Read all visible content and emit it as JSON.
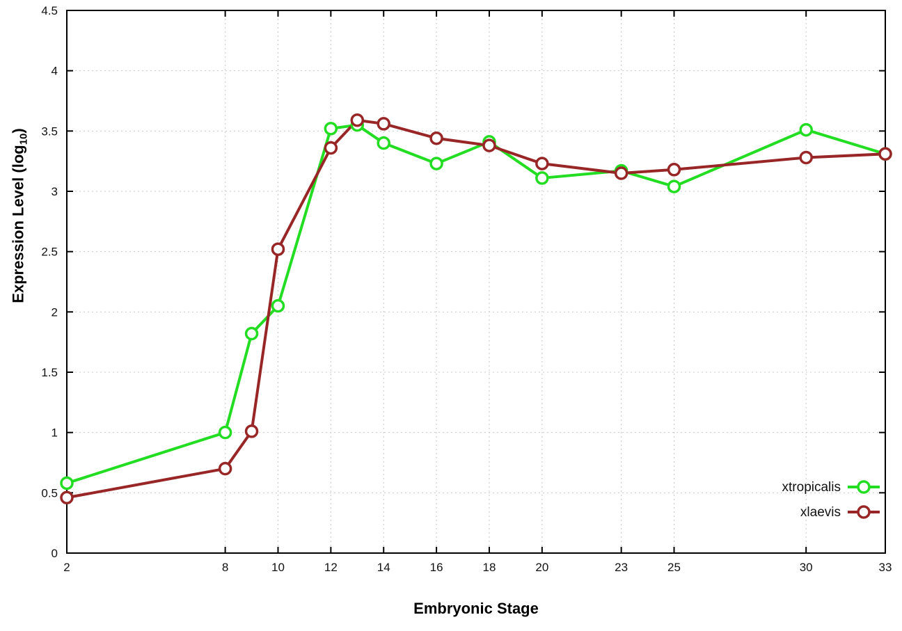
{
  "figure": {
    "background": "#ffffff",
    "border_color": "#000000",
    "grid_color": "#c8c8c8"
  },
  "chart_data": {
    "type": "line",
    "title": "",
    "xlabel": "Embryonic Stage",
    "ylabel": "Expression Level (log10)",
    "ylabel_parts": {
      "prefix": "Expression Level (log",
      "sub": "10",
      "suffix": ")"
    },
    "xlim": [
      2,
      33
    ],
    "ylim": [
      0,
      4.5
    ],
    "x_ticks": [
      2,
      8,
      10,
      12,
      14,
      16,
      18,
      20,
      23,
      25,
      30,
      33
    ],
    "y_ticks": [
      0,
      0.5,
      1,
      1.5,
      2,
      2.5,
      3,
      3.5,
      4,
      4.5
    ],
    "grid": true,
    "legend_position": "bottom-right",
    "x": [
      2,
      8,
      9,
      10,
      12,
      13,
      14,
      16,
      18,
      20,
      23,
      25,
      30,
      33
    ],
    "series": [
      {
        "name": "xtropicalis",
        "color": "#22dd22",
        "values": [
          0.58,
          1.0,
          1.82,
          2.05,
          3.52,
          3.55,
          3.4,
          3.23,
          3.41,
          3.11,
          3.17,
          3.04,
          3.51,
          3.31
        ]
      },
      {
        "name": "xlaevis",
        "color": "#992626",
        "values": [
          0.46,
          0.7,
          1.01,
          2.52,
          3.36,
          3.59,
          3.56,
          3.44,
          3.38,
          3.23,
          3.15,
          3.18,
          3.28,
          3.31
        ]
      }
    ]
  }
}
